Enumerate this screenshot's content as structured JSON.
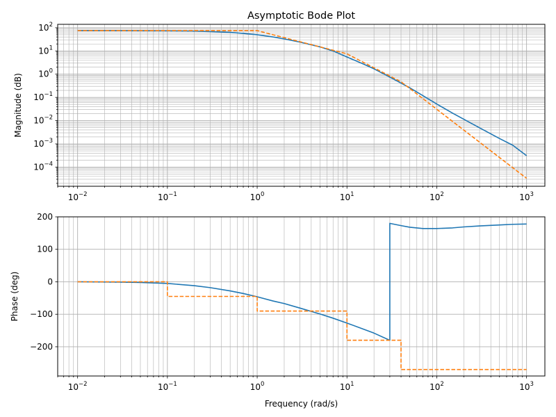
{
  "colors": {
    "series_actual": "#1f77b4",
    "series_asymptotic": "#ff7f0e",
    "grid": "#b0b0b0"
  },
  "chart_data": [
    {
      "type": "line",
      "title": "Asymptotic Bode Plot",
      "xlabel": "",
      "ylabel": "Magnitude (dB)",
      "xscale": "log",
      "yscale": "log",
      "xlim": [
        0.006,
        1600
      ],
      "ylim": [
        1.5e-05,
        140
      ],
      "grid": "both (major and minor)",
      "legend": "none",
      "x_ticks": [
        {
          "value": 0.01,
          "base": "10",
          "exp": "−2"
        },
        {
          "value": 0.1,
          "base": "10",
          "exp": "−1"
        },
        {
          "value": 1,
          "base": "10",
          "exp": "0"
        },
        {
          "value": 10,
          "base": "10",
          "exp": "1"
        },
        {
          "value": 100,
          "base": "10",
          "exp": "2"
        },
        {
          "value": 1000,
          "base": "10",
          "exp": "3"
        }
      ],
      "y_ticks": [
        {
          "value": 0.0001,
          "base": "10",
          "exp": "−4"
        },
        {
          "value": 0.001,
          "base": "10",
          "exp": "−3"
        },
        {
          "value": 0.01,
          "base": "10",
          "exp": "−2"
        },
        {
          "value": 0.1,
          "base": "10",
          "exp": "−1"
        },
        {
          "value": 1,
          "base": "10",
          "exp": "0"
        },
        {
          "value": 10,
          "base": "10",
          "exp": "1"
        },
        {
          "value": 100,
          "base": "10",
          "exp": "2"
        }
      ],
      "series": [
        {
          "style": "solid",
          "x": [
            0.01,
            0.03,
            0.1,
            0.2,
            0.3,
            0.5,
            0.7,
            1,
            1.5,
            2,
            3,
            5,
            7,
            10,
            15,
            20,
            30,
            50,
            70,
            100,
            150,
            200,
            300,
            500,
            700,
            1000
          ],
          "y": [
            75,
            74.5,
            73,
            71,
            68,
            63,
            57,
            50,
            40,
            33,
            24,
            15,
            10,
            5.5,
            2.8,
            1.7,
            0.75,
            0.26,
            0.12,
            0.052,
            0.021,
            0.0115,
            0.0049,
            0.0017,
            0.00088,
            0.00031
          ]
        },
        {
          "style": "dashed",
          "x": [
            0.01,
            1,
            10,
            40,
            1000
          ],
          "y": [
            75,
            75,
            7.5,
            0.47,
            3.3e-05
          ]
        }
      ]
    },
    {
      "type": "line",
      "title": "",
      "xlabel": "Frequency (rad/s)",
      "ylabel": "Phase (deg)",
      "xscale": "log",
      "yscale": "linear",
      "xlim": [
        0.006,
        1600
      ],
      "ylim": [
        -290,
        200
      ],
      "grid": "both (x major and minor, y major)",
      "legend": "none",
      "x_ticks": [
        {
          "value": 0.01,
          "base": "10",
          "exp": "−2"
        },
        {
          "value": 0.1,
          "base": "10",
          "exp": "−1"
        },
        {
          "value": 1,
          "base": "10",
          "exp": "0"
        },
        {
          "value": 10,
          "base": "10",
          "exp": "1"
        },
        {
          "value": 100,
          "base": "10",
          "exp": "2"
        },
        {
          "value": 1000,
          "base": "10",
          "exp": "3"
        }
      ],
      "y_ticks": [
        {
          "value": -200,
          "label": "−200"
        },
        {
          "value": -100,
          "label": "−100"
        },
        {
          "value": 0,
          "label": "0"
        },
        {
          "value": 100,
          "label": "100"
        },
        {
          "value": 200,
          "label": "200"
        }
      ],
      "series": [
        {
          "style": "solid",
          "x": [
            0.01,
            0.03,
            0.05,
            0.1,
            0.2,
            0.3,
            0.5,
            0.7,
            1,
            1.5,
            2,
            3,
            5,
            7,
            10,
            15,
            20,
            30,
            30,
            40,
            50,
            70,
            100,
            150,
            200,
            300,
            500,
            700,
            1000
          ],
          "y": [
            0,
            -1,
            -2,
            -5,
            -12,
            -18,
            -28,
            -36,
            -46,
            -59,
            -67,
            -81,
            -99,
            -112,
            -127,
            -145,
            -158,
            -180,
            180,
            173,
            168,
            164,
            164,
            166,
            169,
            172,
            175,
            177,
            178
          ]
        },
        {
          "style": "dashed",
          "x": [
            0.01,
            0.1,
            0.1,
            1,
            1,
            10,
            10,
            40,
            40,
            1000
          ],
          "y": [
            0,
            0,
            -45,
            -45,
            -90,
            -90,
            -180,
            -180,
            -270,
            -270
          ]
        }
      ]
    }
  ]
}
